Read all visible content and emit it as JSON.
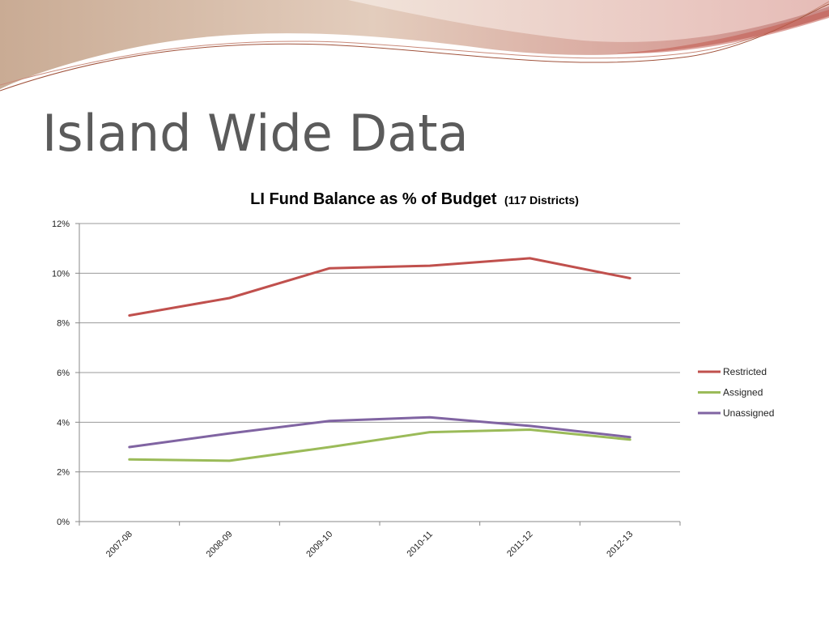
{
  "slide": {
    "title": "Island Wide Data"
  },
  "chart_data": {
    "type": "line",
    "title": "LI Fund Balance as % of Budget",
    "subtitle": "(117 Districts)",
    "categories": [
      "2007-08",
      "2008-09",
      "2009-10",
      "2010-11",
      "2011-12",
      "2012-13"
    ],
    "ylim": [
      0,
      12
    ],
    "yticks": [
      "0%",
      "2%",
      "4%",
      "6%",
      "8%",
      "10%",
      "12%"
    ],
    "grid": true,
    "legend_position": "right",
    "series": [
      {
        "name": "Restricted",
        "color": "#c0504d",
        "values": [
          8.3,
          9.0,
          10.2,
          10.3,
          10.6,
          9.8
        ]
      },
      {
        "name": "Assigned",
        "color": "#9bbb59",
        "values": [
          2.5,
          2.45,
          3.0,
          3.6,
          3.7,
          3.3
        ]
      },
      {
        "name": "Unassigned",
        "color": "#8064a2",
        "values": [
          3.0,
          3.55,
          4.05,
          4.2,
          3.85,
          3.4
        ]
      }
    ]
  }
}
